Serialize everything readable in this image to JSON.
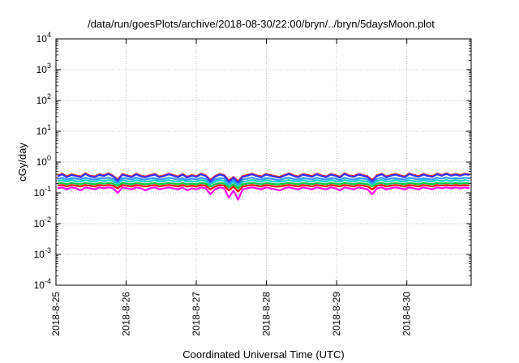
{
  "chart_data": {
    "type": "line",
    "title": "/data/run/goesPlots/archive/2018-08-30/22:00/bryn/../bryn/5daysMoon.plot",
    "xlabel": "Coordinated Universal Time (UTC)",
    "ylabel": "cGy/day",
    "yscale": "log",
    "ylim": [
      0.0001,
      10000
    ],
    "xlim": [
      "2018-08-25 00:00",
      "2018-08-30 22:00"
    ],
    "x_ticks": [
      "2018-8-25",
      "2018-8-26",
      "2018-8-27",
      "2018-8-28",
      "2018-8-29",
      "2018-8-30"
    ],
    "y_ticks": [
      {
        "base": "10",
        "exp": "-4"
      },
      {
        "base": "10",
        "exp": "-3"
      },
      {
        "base": "10",
        "exp": "-2"
      },
      {
        "base": "10",
        "exp": "-1"
      },
      {
        "base": "10",
        "exp": "0"
      },
      {
        "base": "10",
        "exp": "1"
      },
      {
        "base": "10",
        "exp": "2"
      },
      {
        "base": "10",
        "exp": "3"
      },
      {
        "base": "10",
        "exp": "4"
      }
    ],
    "grid": true,
    "series": [
      {
        "color": "#ff00ff",
        "values": [
          0.14,
          0.15,
          0.13,
          0.15,
          0.14,
          0.12,
          0.15,
          0.14,
          0.13,
          0.15,
          0.14,
          0.15,
          0.14,
          0.1,
          0.15,
          0.14,
          0.13,
          0.15,
          0.14,
          0.12,
          0.14,
          0.15,
          0.13,
          0.14,
          0.15,
          0.14,
          0.13,
          0.15,
          0.12,
          0.14,
          0.13,
          0.15,
          0.14,
          0.09,
          0.13,
          0.15,
          0.14,
          0.07,
          0.12,
          0.06,
          0.13,
          0.14,
          0.15,
          0.14,
          0.13,
          0.15,
          0.14,
          0.13,
          0.12,
          0.14,
          0.15,
          0.14,
          0.13,
          0.15,
          0.14,
          0.13,
          0.15,
          0.14,
          0.13,
          0.15,
          0.14,
          0.12,
          0.15,
          0.14,
          0.13,
          0.15,
          0.14,
          0.13,
          0.09,
          0.14,
          0.15,
          0.13,
          0.14,
          0.15,
          0.14,
          0.13,
          0.15,
          0.14,
          0.13,
          0.15,
          0.14,
          0.13,
          0.15,
          0.14,
          0.15,
          0.14,
          0.15,
          0.14,
          0.15,
          0.14
        ]
      },
      {
        "color": "#ff0000",
        "values": [
          0.17,
          0.18,
          0.16,
          0.18,
          0.17,
          0.16,
          0.18,
          0.17,
          0.16,
          0.18,
          0.17,
          0.18,
          0.17,
          0.14,
          0.18,
          0.17,
          0.16,
          0.18,
          0.17,
          0.16,
          0.17,
          0.18,
          0.16,
          0.17,
          0.18,
          0.17,
          0.16,
          0.18,
          0.16,
          0.17,
          0.16,
          0.18,
          0.17,
          0.13,
          0.16,
          0.18,
          0.17,
          0.12,
          0.16,
          0.11,
          0.16,
          0.17,
          0.18,
          0.17,
          0.16,
          0.18,
          0.17,
          0.16,
          0.16,
          0.17,
          0.18,
          0.17,
          0.16,
          0.18,
          0.17,
          0.16,
          0.18,
          0.17,
          0.16,
          0.18,
          0.17,
          0.16,
          0.18,
          0.17,
          0.16,
          0.18,
          0.17,
          0.16,
          0.13,
          0.17,
          0.18,
          0.16,
          0.17,
          0.18,
          0.17,
          0.16,
          0.18,
          0.17,
          0.16,
          0.18,
          0.17,
          0.16,
          0.18,
          0.17,
          0.18,
          0.17,
          0.18,
          0.17,
          0.18,
          0.17
        ]
      },
      {
        "color": "#00cc44",
        "values": [
          0.2,
          0.21,
          0.19,
          0.21,
          0.2,
          0.19,
          0.21,
          0.2,
          0.19,
          0.21,
          0.2,
          0.21,
          0.2,
          0.17,
          0.21,
          0.2,
          0.19,
          0.21,
          0.2,
          0.19,
          0.2,
          0.21,
          0.19,
          0.2,
          0.21,
          0.2,
          0.19,
          0.21,
          0.19,
          0.2,
          0.19,
          0.21,
          0.2,
          0.16,
          0.19,
          0.21,
          0.2,
          0.15,
          0.19,
          0.14,
          0.19,
          0.2,
          0.21,
          0.2,
          0.19,
          0.21,
          0.2,
          0.19,
          0.19,
          0.2,
          0.21,
          0.2,
          0.19,
          0.21,
          0.2,
          0.19,
          0.21,
          0.2,
          0.19,
          0.21,
          0.2,
          0.19,
          0.21,
          0.2,
          0.19,
          0.21,
          0.2,
          0.19,
          0.16,
          0.2,
          0.21,
          0.19,
          0.2,
          0.21,
          0.2,
          0.19,
          0.21,
          0.2,
          0.19,
          0.21,
          0.2,
          0.19,
          0.21,
          0.2,
          0.21,
          0.2,
          0.21,
          0.2,
          0.21,
          0.2
        ]
      },
      {
        "color": "#00cccc",
        "values": [
          0.24,
          0.26,
          0.23,
          0.26,
          0.24,
          0.23,
          0.26,
          0.24,
          0.23,
          0.26,
          0.24,
          0.26,
          0.24,
          0.2,
          0.26,
          0.24,
          0.23,
          0.26,
          0.24,
          0.23,
          0.24,
          0.26,
          0.23,
          0.24,
          0.26,
          0.24,
          0.23,
          0.26,
          0.23,
          0.24,
          0.23,
          0.26,
          0.24,
          0.19,
          0.23,
          0.26,
          0.24,
          0.18,
          0.23,
          0.17,
          0.23,
          0.24,
          0.26,
          0.24,
          0.23,
          0.26,
          0.24,
          0.23,
          0.23,
          0.24,
          0.26,
          0.24,
          0.23,
          0.26,
          0.24,
          0.23,
          0.26,
          0.24,
          0.23,
          0.26,
          0.24,
          0.23,
          0.26,
          0.24,
          0.23,
          0.26,
          0.24,
          0.23,
          0.19,
          0.24,
          0.26,
          0.23,
          0.24,
          0.26,
          0.24,
          0.23,
          0.26,
          0.24,
          0.23,
          0.26,
          0.24,
          0.23,
          0.26,
          0.24,
          0.26,
          0.24,
          0.26,
          0.24,
          0.26,
          0.24
        ]
      },
      {
        "color": "#3399ff",
        "values": [
          0.28,
          0.31,
          0.27,
          0.3,
          0.29,
          0.27,
          0.31,
          0.28,
          0.27,
          0.3,
          0.29,
          0.31,
          0.28,
          0.22,
          0.3,
          0.29,
          0.27,
          0.31,
          0.28,
          0.27,
          0.29,
          0.3,
          0.27,
          0.28,
          0.31,
          0.29,
          0.27,
          0.3,
          0.26,
          0.29,
          0.27,
          0.31,
          0.28,
          0.21,
          0.27,
          0.3,
          0.29,
          0.2,
          0.26,
          0.19,
          0.27,
          0.29,
          0.31,
          0.28,
          0.27,
          0.3,
          0.29,
          0.27,
          0.26,
          0.29,
          0.31,
          0.28,
          0.27,
          0.3,
          0.29,
          0.27,
          0.31,
          0.28,
          0.27,
          0.3,
          0.29,
          0.26,
          0.31,
          0.28,
          0.27,
          0.3,
          0.29,
          0.27,
          0.21,
          0.28,
          0.31,
          0.27,
          0.29,
          0.3,
          0.28,
          0.27,
          0.31,
          0.29,
          0.27,
          0.3,
          0.28,
          0.27,
          0.31,
          0.29,
          0.31,
          0.29,
          0.3,
          0.29,
          0.31,
          0.3
        ]
      },
      {
        "color": "#ff2222",
        "values": [
          0.36,
          0.42,
          0.34,
          0.4,
          0.37,
          0.34,
          0.43,
          0.36,
          0.34,
          0.4,
          0.37,
          0.43,
          0.36,
          0.27,
          0.41,
          0.37,
          0.34,
          0.42,
          0.36,
          0.34,
          0.38,
          0.41,
          0.34,
          0.37,
          0.42,
          0.38,
          0.34,
          0.41,
          0.33,
          0.38,
          0.35,
          0.42,
          0.37,
          0.26,
          0.35,
          0.41,
          0.38,
          0.25,
          0.33,
          0.24,
          0.35,
          0.38,
          0.42,
          0.37,
          0.34,
          0.41,
          0.38,
          0.35,
          0.33,
          0.38,
          0.43,
          0.37,
          0.34,
          0.41,
          0.38,
          0.35,
          0.42,
          0.37,
          0.34,
          0.41,
          0.38,
          0.33,
          0.43,
          0.37,
          0.35,
          0.41,
          0.38,
          0.34,
          0.26,
          0.37,
          0.42,
          0.34,
          0.38,
          0.41,
          0.37,
          0.34,
          0.43,
          0.38,
          0.35,
          0.41,
          0.37,
          0.35,
          0.42,
          0.38,
          0.43,
          0.38,
          0.41,
          0.38,
          0.42,
          0.4
        ]
      },
      {
        "color": "#3333ff",
        "values": [
          0.34,
          0.4,
          0.32,
          0.38,
          0.35,
          0.32,
          0.41,
          0.34,
          0.32,
          0.38,
          0.35,
          0.41,
          0.34,
          0.25,
          0.39,
          0.35,
          0.32,
          0.4,
          0.34,
          0.32,
          0.36,
          0.39,
          0.32,
          0.35,
          0.4,
          0.36,
          0.32,
          0.39,
          0.31,
          0.36,
          0.33,
          0.4,
          0.35,
          0.24,
          0.33,
          0.39,
          0.36,
          0.23,
          0.31,
          0.22,
          0.33,
          0.36,
          0.4,
          0.35,
          0.32,
          0.39,
          0.36,
          0.33,
          0.31,
          0.36,
          0.41,
          0.35,
          0.32,
          0.39,
          0.36,
          0.33,
          0.4,
          0.35,
          0.32,
          0.39,
          0.36,
          0.31,
          0.41,
          0.35,
          0.33,
          0.39,
          0.36,
          0.32,
          0.24,
          0.35,
          0.4,
          0.32,
          0.36,
          0.39,
          0.35,
          0.32,
          0.41,
          0.36,
          0.33,
          0.39,
          0.35,
          0.33,
          0.4,
          0.36,
          0.41,
          0.36,
          0.39,
          0.36,
          0.4,
          0.38
        ]
      }
    ]
  }
}
